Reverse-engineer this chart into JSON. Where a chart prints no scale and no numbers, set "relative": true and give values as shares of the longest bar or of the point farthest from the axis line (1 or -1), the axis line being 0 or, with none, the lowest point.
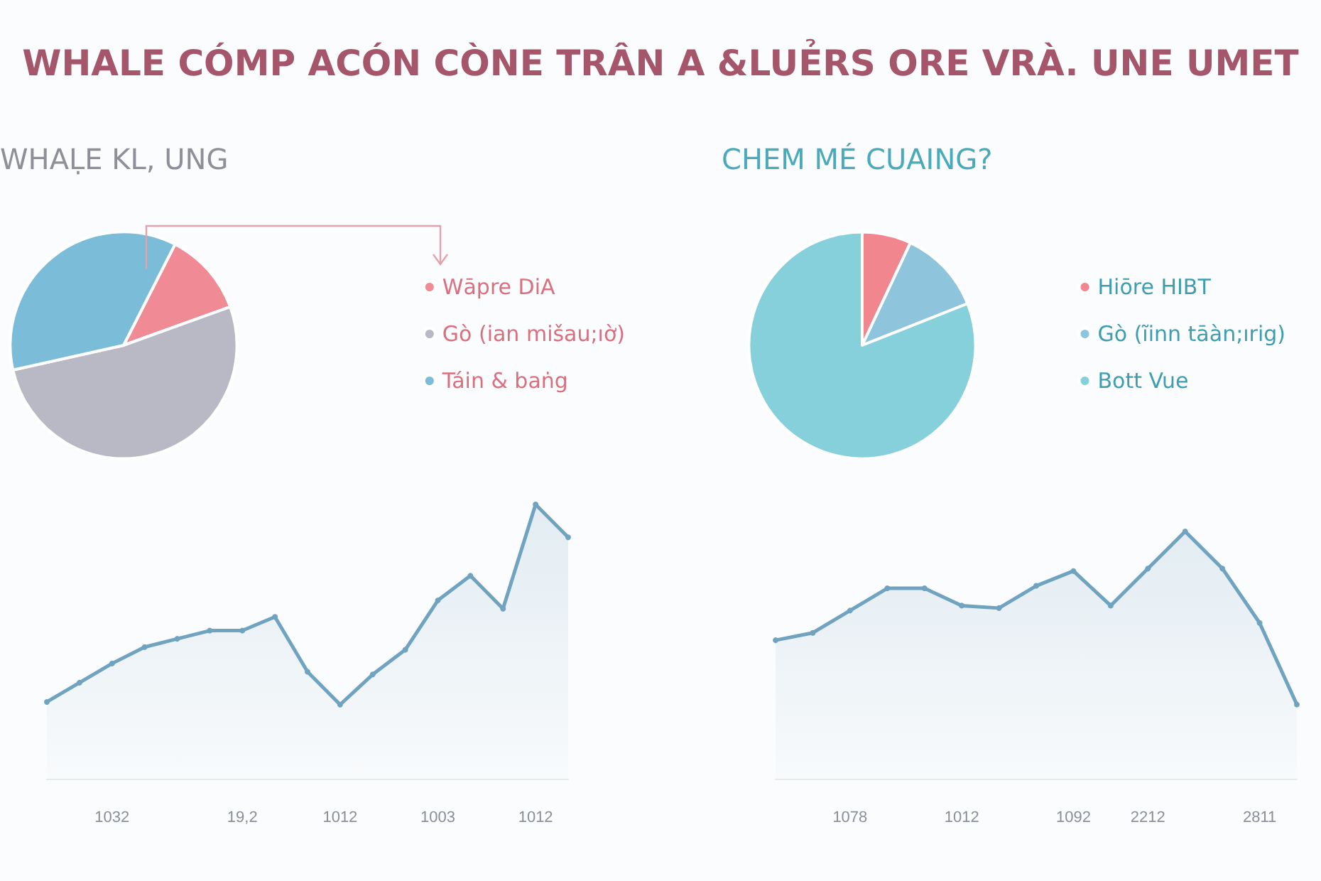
{
  "chart_data": [
    {
      "type": "pie",
      "title": "WHALE CÓMP ACÓN CÒNE TRÂN A &LUẺRS ORE VRÀ. UNE UMET",
      "subtitle": "WHAḶE KL, UNG",
      "categories": [
        "Wāpre DiA",
        "Gò (ian mišau;ıờ)",
        "Táin & baṅg"
      ],
      "values": [
        12,
        52,
        36
      ],
      "colors": [
        "#f08b95",
        "#b9b9c6",
        "#7bbcd8"
      ],
      "legend": "right"
    },
    {
      "type": "pie",
      "subtitle": "CHEM MÉ CUAING?",
      "categories": [
        "Hiōre HIBT",
        "Gò (ĩinn tāàn;ırig)",
        "Bott Vue"
      ],
      "values": [
        7,
        12,
        81
      ],
      "colors": [
        "#f2868f",
        "#8ec5dd",
        "#86d0db"
      ],
      "legend": "right"
    },
    {
      "type": "area",
      "relative": true,
      "categories": [
        null,
        null,
        "1032",
        null,
        null,
        null,
        "19,2",
        null,
        null,
        "1012",
        null,
        null,
        "1003",
        null,
        null,
        "1012",
        null
      ],
      "series": [
        {
          "color": "#6fa3bf",
          "values": [
            0.28,
            0.35,
            0.42,
            0.48,
            0.51,
            0.54,
            0.54,
            0.59,
            0.39,
            0.27,
            0.38,
            0.47,
            0.65,
            0.74,
            0.62,
            1,
            0.88
          ]
        }
      ],
      "marker": "circle"
    },
    {
      "type": "area",
      "relative": true,
      "categories": [
        null,
        null,
        "1078",
        null,
        null,
        "1012",
        null,
        null,
        "1092",
        null,
        "2212",
        null,
        null,
        "2811",
        null
      ],
      "series": [
        {
          "color": "#6fa3bf",
          "values": [
            0.56,
            0.59,
            0.68,
            0.77,
            0.77,
            0.7,
            0.69,
            0.78,
            0.84,
            0.7,
            0.85,
            1,
            0.85,
            0.63,
            0.3
          ]
        }
      ],
      "marker": "circle"
    }
  ]
}
